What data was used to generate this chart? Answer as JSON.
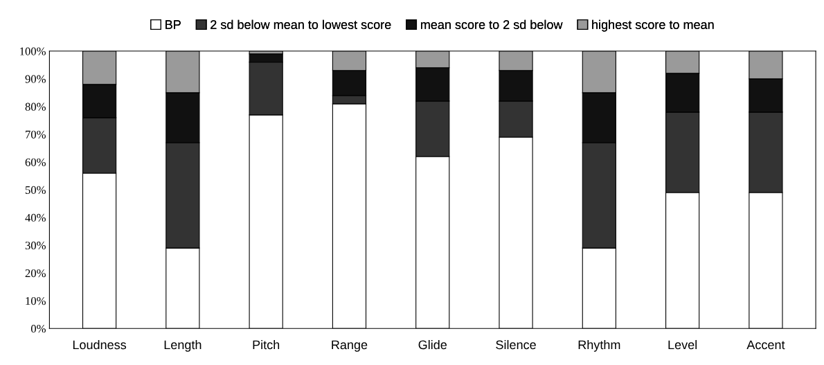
{
  "chart_data": {
    "type": "bar",
    "stacked": true,
    "categories": [
      "Loudness",
      "Length",
      "Pitch",
      "Range",
      "Glide",
      "Silence",
      "Rhythm",
      "Level",
      "Accent"
    ],
    "series": [
      {
        "name": "BP",
        "color": "#ffffff",
        "values": [
          56,
          29,
          77,
          81,
          62,
          69,
          29,
          49,
          49
        ]
      },
      {
        "name": "2 sd below mean to lowest score",
        "color": "#333333",
        "values": [
          20,
          38,
          19,
          3,
          20,
          13,
          38,
          29,
          29
        ]
      },
      {
        "name": "mean score to 2 sd below",
        "color": "#111111",
        "values": [
          12,
          18,
          3,
          9,
          12,
          11,
          18,
          14,
          12
        ]
      },
      {
        "name": "highest score to mean",
        "color": "#9a9a9a",
        "values": [
          12,
          15,
          1,
          7,
          6,
          7,
          15,
          8,
          10
        ]
      }
    ],
    "ylim": [
      0,
      100
    ],
    "yticks": [
      {
        "value": 0,
        "label": "0%"
      },
      {
        "value": 10,
        "label": "10%"
      },
      {
        "value": 20,
        "label": "20%"
      },
      {
        "value": 30,
        "label": "30%"
      },
      {
        "value": 40,
        "label": "40%"
      },
      {
        "value": 50,
        "label": "50%"
      },
      {
        "value": 60,
        "label": "60%"
      },
      {
        "value": 70,
        "label": "70%"
      },
      {
        "value": 80,
        "label": "80%"
      },
      {
        "value": 90,
        "label": "90%"
      },
      {
        "value": 100,
        "label": "100%"
      }
    ],
    "grid": false,
    "legend": "top"
  }
}
